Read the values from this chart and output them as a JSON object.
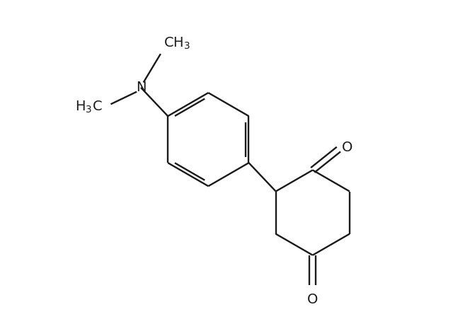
{
  "background_color": "#ffffff",
  "line_color": "#1a1a1a",
  "line_width": 1.7,
  "font_size": 14,
  "fig_width": 6.4,
  "fig_height": 4.75,
  "dpi": 100,
  "xlim": [
    -3.0,
    4.0
  ],
  "ylim": [
    -3.2,
    3.2
  ]
}
